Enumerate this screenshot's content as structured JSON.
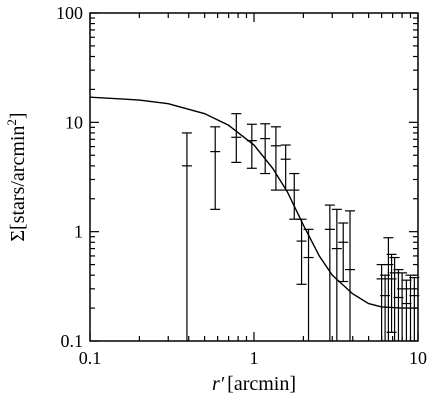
{
  "chart_data": {
    "type": "scatter",
    "title": "",
    "xscale": "log",
    "yscale": "log",
    "xlim": [
      0.1,
      10
    ],
    "ylim": [
      0.1,
      100
    ],
    "xlabel_var": "r′",
    "xlabel_unit": "[arcmin]",
    "ylabel_sym": "Σ",
    "ylabel_text": "[stars/arcmin",
    "ylabel_sup": "2",
    "ylabel_close": "]",
    "x_ticks": [
      {
        "value": 0.1,
        "label": "0.1"
      },
      {
        "value": 1,
        "label": "1"
      },
      {
        "value": 10,
        "label": "10"
      }
    ],
    "y_ticks": [
      {
        "value": 0.1,
        "label": "0.1"
      },
      {
        "value": 1,
        "label": "1"
      },
      {
        "value": 10,
        "label": "10"
      },
      {
        "value": 100,
        "label": "100"
      }
    ],
    "series": [
      {
        "style": "errorbars",
        "points": [
          {
            "x": 0.39,
            "y": 4.0,
            "lo": 0.1,
            "hi": 8.0
          },
          {
            "x": 0.58,
            "y": 5.4,
            "lo": 1.6,
            "hi": 9.1
          },
          {
            "x": 0.78,
            "y": 7.3,
            "lo": 4.3,
            "hi": 12.0
          },
          {
            "x": 0.97,
            "y": 6.8,
            "lo": 3.8,
            "hi": 9.6
          },
          {
            "x": 1.17,
            "y": 7.1,
            "lo": 3.4,
            "hi": 9.7
          },
          {
            "x": 1.36,
            "y": 6.1,
            "lo": 2.4,
            "hi": 9.1
          },
          {
            "x": 1.56,
            "y": 4.6,
            "lo": 2.4,
            "hi": 6.2
          },
          {
            "x": 1.76,
            "y": 2.4,
            "lo": 1.3,
            "hi": 3.4
          },
          {
            "x": 1.95,
            "y": 0.82,
            "lo": 0.33,
            "hi": 1.3
          },
          {
            "x": 2.15,
            "y": 0.58,
            "lo": 0.1,
            "hi": 1.05
          },
          {
            "x": 2.9,
            "y": 1.05,
            "lo": 0.1,
            "hi": 1.75
          },
          {
            "x": 3.2,
            "y": 0.7,
            "lo": 0.1,
            "hi": 1.6
          },
          {
            "x": 3.5,
            "y": 0.8,
            "lo": 0.35,
            "hi": 1.2
          },
          {
            "x": 3.85,
            "y": 0.45,
            "lo": 0.1,
            "hi": 1.55
          },
          {
            "x": 6.0,
            "y": 0.37,
            "lo": 0.1,
            "hi": 0.5
          },
          {
            "x": 6.3,
            "y": 0.26,
            "lo": 0.1,
            "hi": 0.4
          },
          {
            "x": 6.6,
            "y": 0.5,
            "lo": 0.1,
            "hi": 0.88
          },
          {
            "x": 6.9,
            "y": 0.37,
            "lo": 0.12,
            "hi": 0.62
          },
          {
            "x": 7.2,
            "y": 0.42,
            "lo": 0.1,
            "hi": 0.58
          },
          {
            "x": 7.6,
            "y": 0.25,
            "lo": 0.1,
            "hi": 0.45
          },
          {
            "x": 8.0,
            "y": 0.3,
            "lo": 0.1,
            "hi": 0.42
          },
          {
            "x": 8.5,
            "y": 0.22,
            "lo": 0.1,
            "hi": 0.36
          },
          {
            "x": 9.0,
            "y": 0.3,
            "lo": 0.1,
            "hi": 0.4
          },
          {
            "x": 9.5,
            "y": 0.26,
            "lo": 0.1,
            "hi": 0.38
          }
        ]
      },
      {
        "style": "line",
        "points": [
          {
            "x": 0.1,
            "y": 17.0
          },
          {
            "x": 0.2,
            "y": 16.0
          },
          {
            "x": 0.3,
            "y": 14.8
          },
          {
            "x": 0.5,
            "y": 12.0
          },
          {
            "x": 0.7,
            "y": 9.4
          },
          {
            "x": 1.0,
            "y": 6.2
          },
          {
            "x": 1.3,
            "y": 3.8
          },
          {
            "x": 1.6,
            "y": 2.3
          },
          {
            "x": 2.0,
            "y": 1.15
          },
          {
            "x": 2.5,
            "y": 0.6
          },
          {
            "x": 3.0,
            "y": 0.4
          },
          {
            "x": 4.0,
            "y": 0.27
          },
          {
            "x": 5.0,
            "y": 0.22
          },
          {
            "x": 6.0,
            "y": 0.205
          },
          {
            "x": 8.0,
            "y": 0.2
          },
          {
            "x": 10.0,
            "y": 0.2
          }
        ]
      }
    ]
  }
}
